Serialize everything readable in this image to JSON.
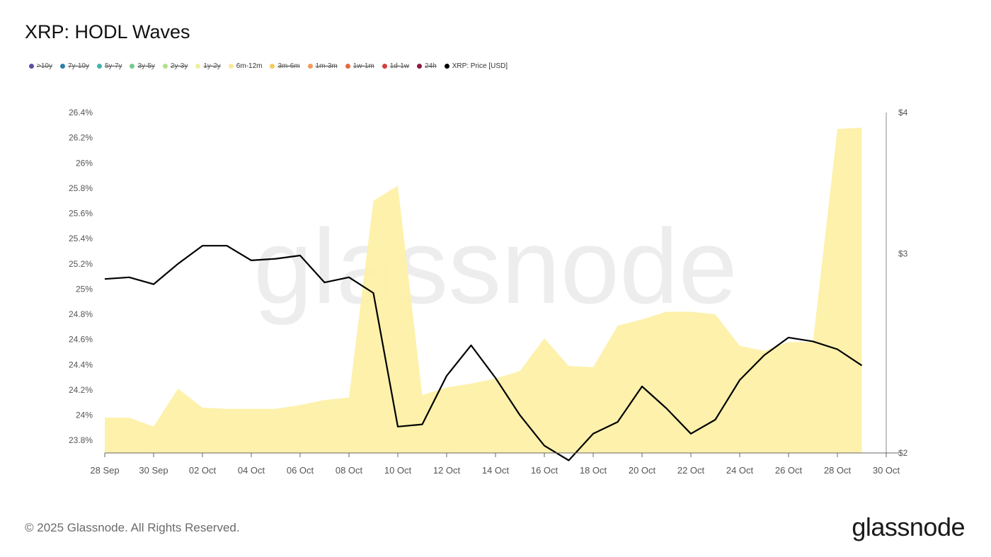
{
  "title": "XRP: HODL Waves",
  "legend": [
    {
      "label": ">10y",
      "color": "#5b4ea3",
      "active": false
    },
    {
      "label": "7y-10y",
      "color": "#2f7fa8",
      "active": false
    },
    {
      "label": "5y-7y",
      "color": "#3fb6ae",
      "active": false
    },
    {
      "label": "3y-5y",
      "color": "#78c98a",
      "active": false
    },
    {
      "label": "2y-3y",
      "color": "#b4e08d",
      "active": false
    },
    {
      "label": "1y-2y",
      "color": "#eef29a",
      "active": false
    },
    {
      "label": "6m-12m",
      "color": "#fde79a",
      "active": true
    },
    {
      "label": "3m-6m",
      "color": "#f6c85f",
      "active": false
    },
    {
      "label": "1m-3m",
      "color": "#f29b5c",
      "active": false
    },
    {
      "label": "1w-1m",
      "color": "#e8673f",
      "active": false
    },
    {
      "label": "1d-1w",
      "color": "#d63d3d",
      "active": false
    },
    {
      "label": "24h",
      "color": "#8e1a3c",
      "active": false
    },
    {
      "label": "XRP: Price [USD]",
      "color": "#000000",
      "active": true
    }
  ],
  "watermark": "glassnode",
  "footer": "© 2025 Glassnode. All Rights Reserved.",
  "brand": "glassnode",
  "chart_data": {
    "type": "area",
    "x": [
      "28 Sep",
      "29 Sep",
      "30 Sep",
      "01 Oct",
      "02 Oct",
      "03 Oct",
      "04 Oct",
      "05 Oct",
      "06 Oct",
      "07 Oct",
      "08 Oct",
      "09 Oct",
      "10 Oct",
      "11 Oct",
      "12 Oct",
      "13 Oct",
      "14 Oct",
      "15 Oct",
      "16 Oct",
      "17 Oct",
      "18 Oct",
      "19 Oct",
      "20 Oct",
      "21 Oct",
      "22 Oct",
      "23 Oct",
      "24 Oct",
      "25 Oct",
      "26 Oct",
      "27 Oct",
      "28 Oct",
      "29 Oct"
    ],
    "x_tick_labels": [
      "28 Sep",
      "30 Sep",
      "02 Oct",
      "04 Oct",
      "06 Oct",
      "08 Oct",
      "10 Oct",
      "12 Oct",
      "14 Oct",
      "16 Oct",
      "18 Oct",
      "20 Oct",
      "22 Oct",
      "24 Oct",
      "26 Oct",
      "28 Oct",
      "30 Oct"
    ],
    "series": [
      {
        "name": "6m-12m",
        "axis": "left",
        "color": "#fdf0a8",
        "values": [
          23.98,
          23.98,
          23.91,
          24.21,
          24.06,
          24.05,
          24.05,
          24.05,
          24.08,
          24.12,
          24.14,
          25.7,
          25.82,
          24.16,
          24.22,
          24.25,
          24.29,
          24.35,
          24.61,
          24.39,
          24.38,
          24.71,
          24.76,
          24.82,
          24.82,
          24.8,
          24.55,
          24.51,
          24.58,
          24.58,
          26.27,
          26.28
        ]
      },
      {
        "name": "XRP: Price [USD]",
        "axis": "right",
        "color": "#000000",
        "values": [
          2.85,
          2.86,
          2.82,
          2.94,
          3.05,
          3.05,
          2.96,
          2.97,
          2.99,
          2.83,
          2.86,
          2.77,
          2.11,
          2.12,
          2.34,
          2.49,
          2.33,
          2.16,
          2.03,
          1.97,
          2.08,
          2.13,
          2.29,
          2.19,
          2.08,
          2.14,
          2.32,
          2.44,
          2.53,
          2.51,
          2.47,
          2.39
        ]
      }
    ],
    "left_axis": {
      "ylim": [
        23.7,
        26.4
      ],
      "ticks": [
        23.8,
        24.0,
        24.2,
        24.4,
        24.6,
        24.8,
        25.0,
        25.2,
        25.4,
        25.6,
        25.8,
        26.0,
        26.2,
        26.4
      ],
      "tick_labels": [
        "23.8%",
        "24%",
        "24.2%",
        "24.4%",
        "24.6%",
        "24.8%",
        "25%",
        "25.2%",
        "25.4%",
        "25.6%",
        "25.8%",
        "26%",
        "26.2%",
        "26.4%"
      ]
    },
    "right_axis": {
      "scale": "log",
      "ylim": [
        2,
        4
      ],
      "ticks": [
        2,
        3,
        4
      ],
      "tick_labels": [
        "$2",
        "$3",
        "$4"
      ]
    },
    "grid": false,
    "legend_position": "top-left"
  }
}
